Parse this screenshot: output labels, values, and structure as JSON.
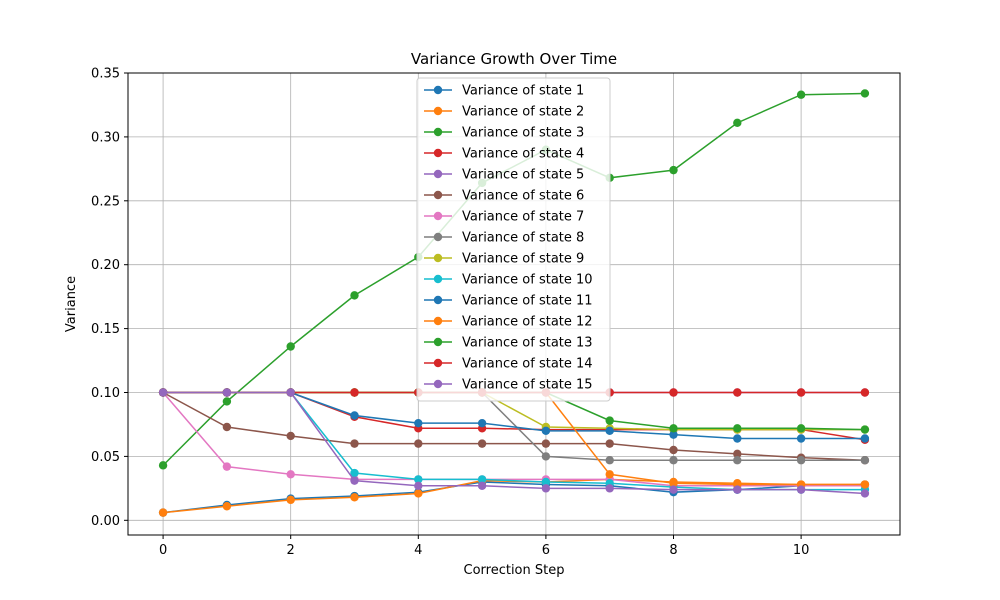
{
  "chart_data": {
    "type": "line",
    "title": "Variance Growth Over Time",
    "xlabel": "Correction Step",
    "ylabel": "Variance",
    "xlim": [
      -0.55,
      11.55
    ],
    "ylim": [
      -0.0115,
      0.35
    ],
    "xticks": [
      0,
      2,
      4,
      6,
      8,
      10
    ],
    "xtick_labels": [
      "0",
      "2",
      "4",
      "6",
      "8",
      "10"
    ],
    "yticks": [
      0.0,
      0.05,
      0.1,
      0.15,
      0.2,
      0.25,
      0.3,
      0.35
    ],
    "ytick_labels": [
      "0.00",
      "0.05",
      "0.10",
      "0.15",
      "0.20",
      "0.25",
      "0.30",
      "0.35"
    ],
    "grid": true,
    "legend_position": "upper-center",
    "x": [
      0,
      1,
      2,
      3,
      4,
      5,
      6,
      7,
      8,
      9,
      10,
      11
    ],
    "series": [
      {
        "name": "Variance of state 1",
        "color": "#1f77b4",
        "values": [
          0.006,
          0.012,
          0.017,
          0.019,
          0.022,
          0.03,
          0.028,
          0.027,
          0.022,
          0.024,
          0.027,
          0.028
        ]
      },
      {
        "name": "Variance of state 2",
        "color": "#ff7f0e",
        "values": [
          0.006,
          0.011,
          0.016,
          0.018,
          0.021,
          0.031,
          0.03,
          0.032,
          0.03,
          0.029,
          0.028,
          0.028
        ]
      },
      {
        "name": "Variance of state 3",
        "color": "#2ca02c",
        "values": [
          0.043,
          0.093,
          0.136,
          0.176,
          0.206,
          0.264,
          0.29,
          0.268,
          0.274,
          0.311,
          0.333,
          0.334
        ]
      },
      {
        "name": "Variance of state 4",
        "color": "#d62728",
        "values": [
          0.1,
          0.1,
          0.1,
          0.081,
          0.072,
          0.072,
          0.071,
          0.071,
          0.071,
          0.071,
          0.071,
          0.063
        ]
      },
      {
        "name": "Variance of state 5",
        "color": "#9467bd",
        "values": [
          0.1,
          0.1,
          0.1,
          0.1,
          0.1,
          0.1,
          0.1,
          0.1,
          0.1,
          0.1,
          0.1,
          0.1
        ]
      },
      {
        "name": "Variance of state 6",
        "color": "#8c564b",
        "values": [
          0.1,
          0.073,
          0.066,
          0.06,
          0.06,
          0.06,
          0.06,
          0.06,
          0.055,
          0.052,
          0.049,
          0.047
        ]
      },
      {
        "name": "Variance of state 7",
        "color": "#e377c2",
        "values": [
          0.1,
          0.042,
          0.036,
          0.032,
          0.032,
          0.032,
          0.032,
          0.032,
          0.027,
          0.027,
          0.027,
          0.027
        ]
      },
      {
        "name": "Variance of state 8",
        "color": "#7f7f7f",
        "values": [
          0.1,
          0.1,
          0.1,
          0.1,
          0.1,
          0.1,
          0.05,
          0.047,
          0.047,
          0.047,
          0.047,
          0.047
        ]
      },
      {
        "name": "Variance of state 9",
        "color": "#bcbd22",
        "values": [
          0.1,
          0.1,
          0.1,
          0.1,
          0.1,
          0.1,
          0.073,
          0.072,
          0.071,
          0.071,
          0.071,
          0.071
        ]
      },
      {
        "name": "Variance of state 10",
        "color": "#17becf",
        "values": [
          0.1,
          0.1,
          0.1,
          0.037,
          0.032,
          0.032,
          0.03,
          0.029,
          0.026,
          0.024,
          0.024,
          0.024
        ]
      },
      {
        "name": "Variance of state 11",
        "color": "#1f77b4",
        "values": [
          0.1,
          0.1,
          0.1,
          0.082,
          0.076,
          0.076,
          0.07,
          0.07,
          0.067,
          0.064,
          0.064,
          0.064
        ]
      },
      {
        "name": "Variance of state 12",
        "color": "#ff7f0e",
        "values": [
          0.1,
          0.1,
          0.1,
          0.1,
          0.1,
          0.1,
          0.1,
          0.036,
          0.029,
          0.028,
          0.028,
          0.028
        ]
      },
      {
        "name": "Variance of state 13",
        "color": "#2ca02c",
        "values": [
          0.1,
          0.1,
          0.1,
          0.1,
          0.1,
          0.1,
          0.1,
          0.078,
          0.072,
          0.072,
          0.072,
          0.071
        ]
      },
      {
        "name": "Variance of state 14",
        "color": "#d62728",
        "values": [
          0.1,
          0.1,
          0.1,
          0.1,
          0.1,
          0.1,
          0.1,
          0.1,
          0.1,
          0.1,
          0.1,
          0.1
        ]
      },
      {
        "name": "Variance of state 15",
        "color": "#9467bd",
        "values": [
          0.1,
          0.1,
          0.1,
          0.031,
          0.027,
          0.027,
          0.025,
          0.025,
          0.024,
          0.024,
          0.024,
          0.021
        ]
      }
    ]
  }
}
